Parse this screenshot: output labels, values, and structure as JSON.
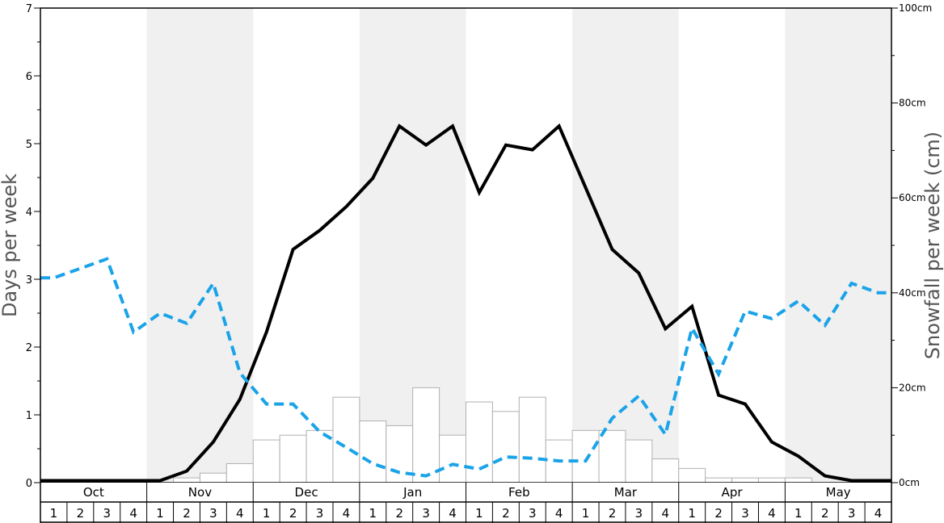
{
  "chart_data": {
    "type": "bar+line",
    "title": "",
    "ylabel_left": "Days per week",
    "ylabel_right": "Snowfall per week (cm)",
    "ylim_left": [
      0,
      7
    ],
    "ylim_right": [
      0,
      100
    ],
    "left_ticks": [
      "0",
      "1",
      "2",
      "3",
      "4",
      "5",
      "6",
      "7"
    ],
    "right_ticks": [
      "0cm",
      "20cm",
      "40cm",
      "60cm",
      "80cm",
      "100cm"
    ],
    "months": [
      "Oct",
      "Nov",
      "Dec",
      "Jan",
      "Feb",
      "Mar",
      "Apr",
      "May"
    ],
    "week_labels": [
      "1",
      "2",
      "3",
      "4"
    ],
    "shaded_months": [
      false,
      true,
      false,
      true,
      false,
      true,
      false,
      true
    ],
    "colors": {
      "shade": "#f0f0f0",
      "bar_fill": "#ffffff",
      "bar_stroke": "#b0b0b0",
      "solid_line": "#000000",
      "dashed_line": "#1aa3e8"
    },
    "series": [
      {
        "kind": "bar",
        "axis": "right",
        "values": [
          0,
          0,
          0,
          0,
          0,
          1,
          2,
          4,
          9,
          10,
          11,
          18,
          13,
          12,
          20,
          10,
          17,
          15,
          18,
          9,
          11,
          11,
          9,
          5,
          3,
          1,
          1,
          1,
          1,
          0,
          0,
          0
        ]
      },
      {
        "kind": "line",
        "style": "solid",
        "axis": "left",
        "values": [
          0.03,
          0.03,
          0.03,
          0.03,
          0.03,
          0.17,
          0.6,
          1.23,
          2.22,
          3.44,
          3.72,
          4.07,
          4.49,
          5.26,
          4.98,
          5.26,
          4.28,
          4.98,
          4.91,
          5.26,
          4.35,
          3.44,
          3.09,
          2.27,
          2.6,
          1.29,
          1.16,
          0.6,
          0.39,
          0.1,
          0.03,
          0.03
        ]
      },
      {
        "kind": "line",
        "style": "dashed",
        "axis": "left",
        "values": [
          3.02,
          3.16,
          3.3,
          2.22,
          2.5,
          2.35,
          2.94,
          1.62,
          1.16,
          1.16,
          0.75,
          0.52,
          0.28,
          0.15,
          0.1,
          0.27,
          0.2,
          0.38,
          0.36,
          0.32,
          0.32,
          0.95,
          1.28,
          0.71,
          2.28,
          1.6,
          2.53,
          2.42,
          2.68,
          2.32,
          2.94,
          2.8
        ]
      }
    ]
  }
}
